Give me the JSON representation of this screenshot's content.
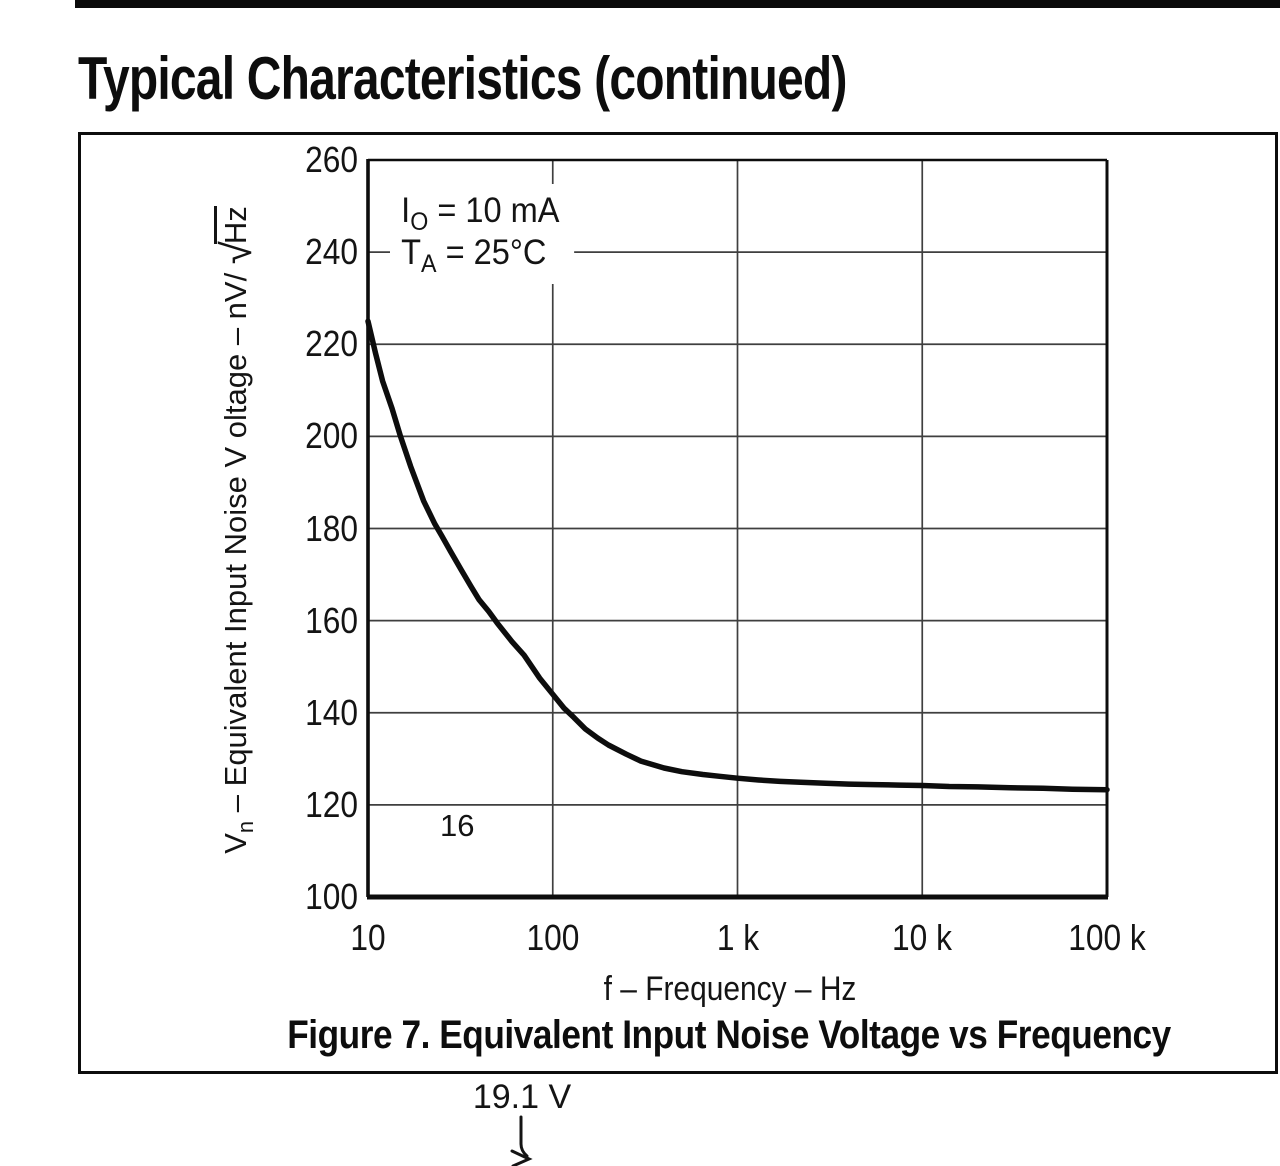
{
  "page": {
    "title": "Typical Characteristics (continued)"
  },
  "figure": {
    "caption": "Figure 7. Equivalent Input Noise Voltage vs Frequency",
    "conditions": [
      {
        "sym": "I",
        "sub": "O",
        "rest": " = 10 mA"
      },
      {
        "sym": "T",
        "sub": "A",
        "rest": " = 25°C"
      }
    ],
    "below_label": "19.1 V"
  },
  "chart_data": {
    "type": "line",
    "x_scale": "log",
    "xlim": [
      10,
      100000
    ],
    "ylim": [
      100,
      260
    ],
    "xlabel": "f – Frequency – Hz",
    "ylabel": {
      "var": "V",
      "var_sub": "n",
      "mid": " – Equivalent Input Noise V oltage – nV/ ",
      "radical": "√",
      "sqrt_of": "Hz"
    },
    "xticks": [
      {
        "value": 10,
        "label": "10"
      },
      {
        "value": 100,
        "label": "100"
      },
      {
        "value": 1000,
        "label": "1 k"
      },
      {
        "value": 10000,
        "label": "10 k"
      },
      {
        "value": 100000,
        "label": "100 k"
      }
    ],
    "yticks": [
      {
        "value": 260,
        "label": "260"
      },
      {
        "value": 240,
        "label": "240"
      },
      {
        "value": 220,
        "label": "220"
      },
      {
        "value": 200,
        "label": "200"
      },
      {
        "value": 180,
        "label": "180"
      },
      {
        "value": 160,
        "label": "160"
      },
      {
        "value": 140,
        "label": "140"
      },
      {
        "value": 120,
        "label": "120"
      },
      {
        "value": 100,
        "label": "100"
      }
    ],
    "grid": true,
    "inner_note": "16",
    "colors": {
      "ink": "#0d0d0d",
      "grid": "#3f3f3f"
    },
    "series": [
      {
        "name": "equivalent-input-noise-voltage",
        "points": [
          [
            10,
            225
          ],
          [
            11,
            218
          ],
          [
            12,
            212
          ],
          [
            13.5,
            206
          ],
          [
            15,
            200
          ],
          [
            17,
            193.5
          ],
          [
            20,
            186
          ],
          [
            23,
            181
          ],
          [
            25,
            178.5
          ],
          [
            28,
            175
          ],
          [
            32,
            171
          ],
          [
            36,
            167.5
          ],
          [
            40,
            164.5
          ],
          [
            45,
            162
          ],
          [
            50,
            159.5
          ],
          [
            60,
            155.5
          ],
          [
            70,
            152.5
          ],
          [
            85,
            147.5
          ],
          [
            100,
            144
          ],
          [
            115,
            141
          ],
          [
            130,
            139
          ],
          [
            150,
            136.5
          ],
          [
            175,
            134.5
          ],
          [
            200,
            133
          ],
          [
            250,
            131
          ],
          [
            300,
            129.5
          ],
          [
            400,
            128
          ],
          [
            500,
            127.2
          ],
          [
            650,
            126.6
          ],
          [
            800,
            126.2
          ],
          [
            1000,
            125.8
          ],
          [
            1300,
            125.4
          ],
          [
            1700,
            125.1
          ],
          [
            2200,
            124.9
          ],
          [
            3000,
            124.7
          ],
          [
            4000,
            124.5
          ],
          [
            5500,
            124.4
          ],
          [
            7500,
            124.3
          ],
          [
            10000,
            124.2
          ],
          [
            14000,
            124
          ],
          [
            20000,
            123.9
          ],
          [
            30000,
            123.7
          ],
          [
            45000,
            123.6
          ],
          [
            65000,
            123.4
          ],
          [
            100000,
            123.3
          ]
        ]
      }
    ]
  }
}
